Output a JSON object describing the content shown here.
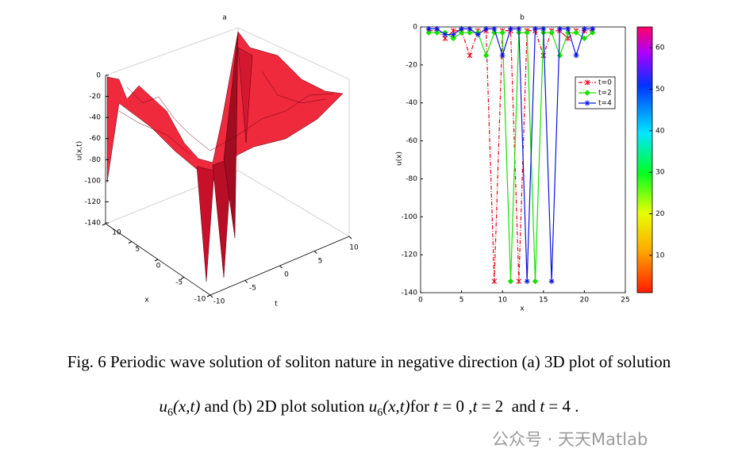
{
  "chart_data": [
    {
      "type": "surface3d",
      "title": "a",
      "xlabel": "x",
      "ylabel": "t",
      "zlabel": "u(x,t)",
      "xlim": [
        -10,
        10
      ],
      "xticks": [
        10,
        5,
        0,
        -5,
        -10
      ],
      "ylim": [
        -10,
        10
      ],
      "yticks": [
        -10,
        -5,
        0,
        5,
        10
      ],
      "zlim": [
        -140,
        0
      ],
      "zticks": [
        0,
        -20,
        -40,
        -60,
        -80,
        -100,
        -120,
        -140
      ]
    },
    {
      "type": "line",
      "title": "b",
      "xlabel": "x",
      "ylabel": "u(x)",
      "xlim": [
        0,
        25
      ],
      "xticks": [
        0,
        5,
        10,
        15,
        20,
        25
      ],
      "ylim": [
        -140,
        0
      ],
      "yticks": [
        0,
        -20,
        -40,
        -60,
        -80,
        -100,
        -120,
        -140
      ],
      "legend": "upper right",
      "x": [
        1,
        2,
        3,
        4,
        5,
        6,
        7,
        8,
        9,
        10,
        11,
        12,
        13,
        14,
        15,
        16,
        17,
        18,
        19,
        20,
        21
      ],
      "series": [
        {
          "name": "t=0",
          "color": "#e8001a",
          "dash": "dashdot",
          "values": [
            -2,
            -2,
            -6,
            -2,
            -2,
            -15,
            -2,
            -2,
            -134,
            -2,
            -2,
            -134,
            -2,
            -2,
            -15,
            -2,
            -2,
            -6,
            -2,
            -2,
            -2
          ]
        },
        {
          "name": "t=2",
          "color": "#18e000",
          "dash": "solid",
          "values": [
            -3,
            -3,
            -3,
            -6,
            -3,
            -3,
            -3,
            -15,
            -3,
            -3,
            -134,
            -3,
            -3,
            -134,
            -3,
            -3,
            -15,
            -3,
            -3,
            -6,
            -3
          ]
        },
        {
          "name": "t=4",
          "color": "#0a14e0",
          "dash": "solid",
          "values": [
            -1,
            -1,
            -4,
            -4,
            -1,
            -1,
            -4,
            -1,
            -1,
            -15,
            -1,
            -1,
            -134,
            -1,
            -1,
            -134,
            -1,
            -1,
            -15,
            -1,
            -1
          ]
        }
      ],
      "colorbar": {
        "clim": [
          1,
          65
        ],
        "ticks": [
          10,
          20,
          30,
          40,
          50,
          60
        ]
      }
    }
  ],
  "caption": {
    "line1": "Fig. 6 Periodic wave solution of soliton nature in negative direction (a) 3D plot of solution",
    "line2": [
      {
        "text": "u",
        "style": "italic"
      },
      {
        "text": "6",
        "style": "sub"
      },
      {
        "text": "(x,t)",
        "style": "italic"
      },
      {
        "text": " and (b) 2D plot solution ",
        "style": "normal"
      },
      {
        "text": "u",
        "style": "italic"
      },
      {
        "text": "6",
        "style": "sub"
      },
      {
        "text": "(x,t)",
        "style": "italic"
      },
      {
        "text": "for ",
        "style": "normal"
      },
      {
        "text": "t",
        "style": "italic"
      },
      {
        "text": " = 0 ,",
        "style": "normal"
      },
      {
        "text": "t",
        "style": "italic"
      },
      {
        "text": " = 2  and ",
        "style": "normal"
      },
      {
        "text": "t",
        "style": "italic"
      },
      {
        "text": " = 4 .",
        "style": "normal"
      }
    ]
  },
  "watermark": "公众号 · 天天Matlab"
}
